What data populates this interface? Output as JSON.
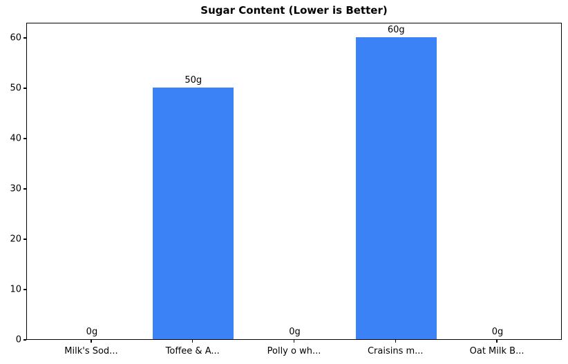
{
  "chart_data": {
    "type": "bar",
    "title": "Sugar Content (Lower is Better)",
    "categories": [
      "Milk's Sod...",
      "Toffee & A...",
      "Polly o wh...",
      "Craisins m...",
      "Oat Milk B..."
    ],
    "values": [
      0,
      50,
      0,
      60,
      0
    ],
    "bar_labels": [
      "0g",
      "50g",
      "0g",
      "60g",
      "0g"
    ],
    "xlabel": "",
    "ylabel": "",
    "yticks": [
      0,
      10,
      20,
      30,
      40,
      50,
      60
    ],
    "ylim": [
      0,
      63
    ],
    "grid": false,
    "legend": "none",
    "bar_color": "#3b82f6",
    "axis_color": "#000000",
    "text_color": "#000000"
  }
}
